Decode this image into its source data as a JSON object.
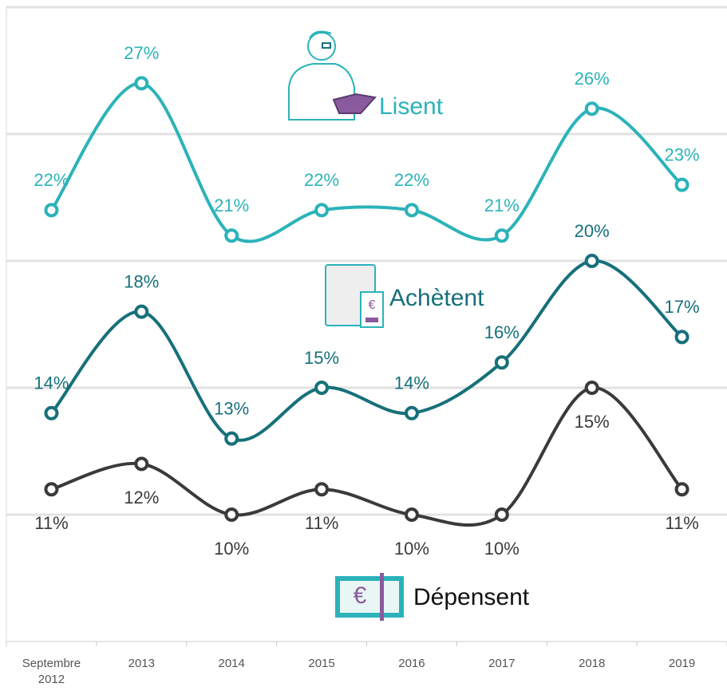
{
  "chart_data": {
    "type": "line",
    "categories": [
      "Septembre 2012",
      "2013",
      "2014",
      "2015",
      "2016",
      "2017",
      "2018",
      "2019"
    ],
    "series": [
      {
        "name": "Lisent",
        "color": "#2bb3b9",
        "values": [
          22,
          27,
          21,
          22,
          22,
          21,
          26,
          23
        ],
        "value_labels": [
          "22%",
          "27%",
          "21%",
          "22%",
          "22%",
          "21%",
          "26%",
          "23%"
        ]
      },
      {
        "name": "Achètent",
        "color": "#16707a",
        "values": [
          14,
          18,
          13,
          15,
          14,
          16,
          20,
          17
        ],
        "value_labels": [
          "14%",
          "18%",
          "13%",
          "15%",
          "14%",
          "16%",
          "20%",
          "17%"
        ]
      },
      {
        "name": "Dépensent",
        "color": "#3a3a3a",
        "values": [
          11,
          12,
          10,
          11,
          10,
          10,
          15,
          11
        ],
        "value_labels": [
          "11%",
          "12%",
          "10%",
          "11%",
          "10%",
          "10%",
          "15%",
          "11%"
        ]
      }
    ],
    "ylim": [
      5,
      30
    ],
    "yticks": [
      10,
      15,
      20,
      25,
      30
    ],
    "grid": true
  }
}
